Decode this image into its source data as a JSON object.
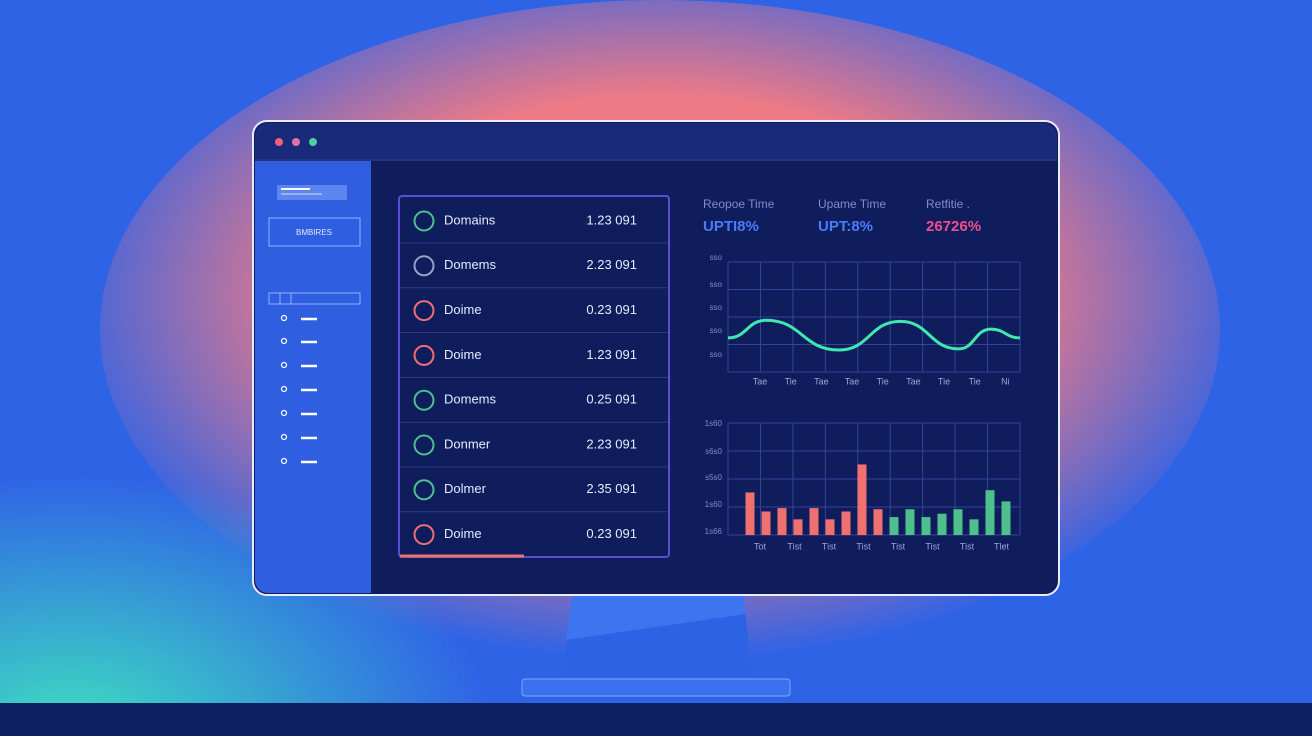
{
  "sidebar": {
    "button": "BMBIRES"
  },
  "domains": [
    {
      "name": "Domains",
      "value": "1.23 091",
      "status": "#4fc08d"
    },
    {
      "name": "Domems",
      "value": "2.23 091",
      "status": "#9aa0c8"
    },
    {
      "name": "Doime",
      "value": "0.23 091",
      "status": "#f07070"
    },
    {
      "name": "Doime",
      "value": "1.23 091",
      "status": "#f07070"
    },
    {
      "name": "Domems",
      "value": "0.25 091",
      "status": "#4fc08d"
    },
    {
      "name": "Donmer",
      "value": "2.23 091",
      "status": "#4fc08d"
    },
    {
      "name": "Dolmer",
      "value": "2.35 091",
      "status": "#4fc08d"
    },
    {
      "name": "Doime",
      "value": "0.23 091",
      "status": "#f07070"
    }
  ],
  "metrics": [
    {
      "label": "Reopoe Time",
      "value": "UPTI8%",
      "color": "#4a7cff"
    },
    {
      "label": "Upame Time",
      "value": "UPT:8%",
      "color": "#4a7cff"
    },
    {
      "label": "Retfitie .",
      "value": "26726%",
      "color": "#f0508a"
    }
  ],
  "chart_data": [
    {
      "type": "line",
      "x": [
        0,
        13,
        38,
        59,
        79,
        90,
        100
      ],
      "values": [
        31,
        47,
        20,
        46,
        21,
        39,
        31
      ],
      "color": "#3ee8b0",
      "xlim": [
        0,
        100
      ],
      "ylim": [
        0,
        100
      ],
      "y_labels": [
        "sso",
        "sso",
        "sso",
        "sso",
        "sso"
      ],
      "x_labels": [
        "Tae",
        "Tie",
        "Tae",
        "Tae",
        "Tie",
        "Tae",
        "Tie",
        "Tie",
        "Ni"
      ],
      "grid": true
    },
    {
      "type": "bar",
      "values": [
        38,
        21,
        24,
        14,
        24,
        14,
        21,
        63,
        23,
        16,
        23,
        16,
        19,
        23,
        14,
        40,
        30
      ],
      "colors": [
        "#f07070",
        "#f07070",
        "#f07070",
        "#f07070",
        "#f07070",
        "#f07070",
        "#f07070",
        "#f07070",
        "#f07070",
        "#4fc08d",
        "#4fc08d",
        "#4fc08d",
        "#4fc08d",
        "#4fc08d",
        "#4fc08d",
        "#4fc08d",
        "#4fc08d"
      ],
      "ylim": [
        0,
        100
      ],
      "y_labels": [
        "1s60",
        "s6s0",
        "s5s0",
        "1s60",
        "1s66"
      ],
      "x_labels": [
        "Tot",
        "Tist",
        "Tist",
        "Tist",
        "Tist",
        "Tist",
        "Tist",
        "Tlet"
      ],
      "grid": true
    }
  ]
}
